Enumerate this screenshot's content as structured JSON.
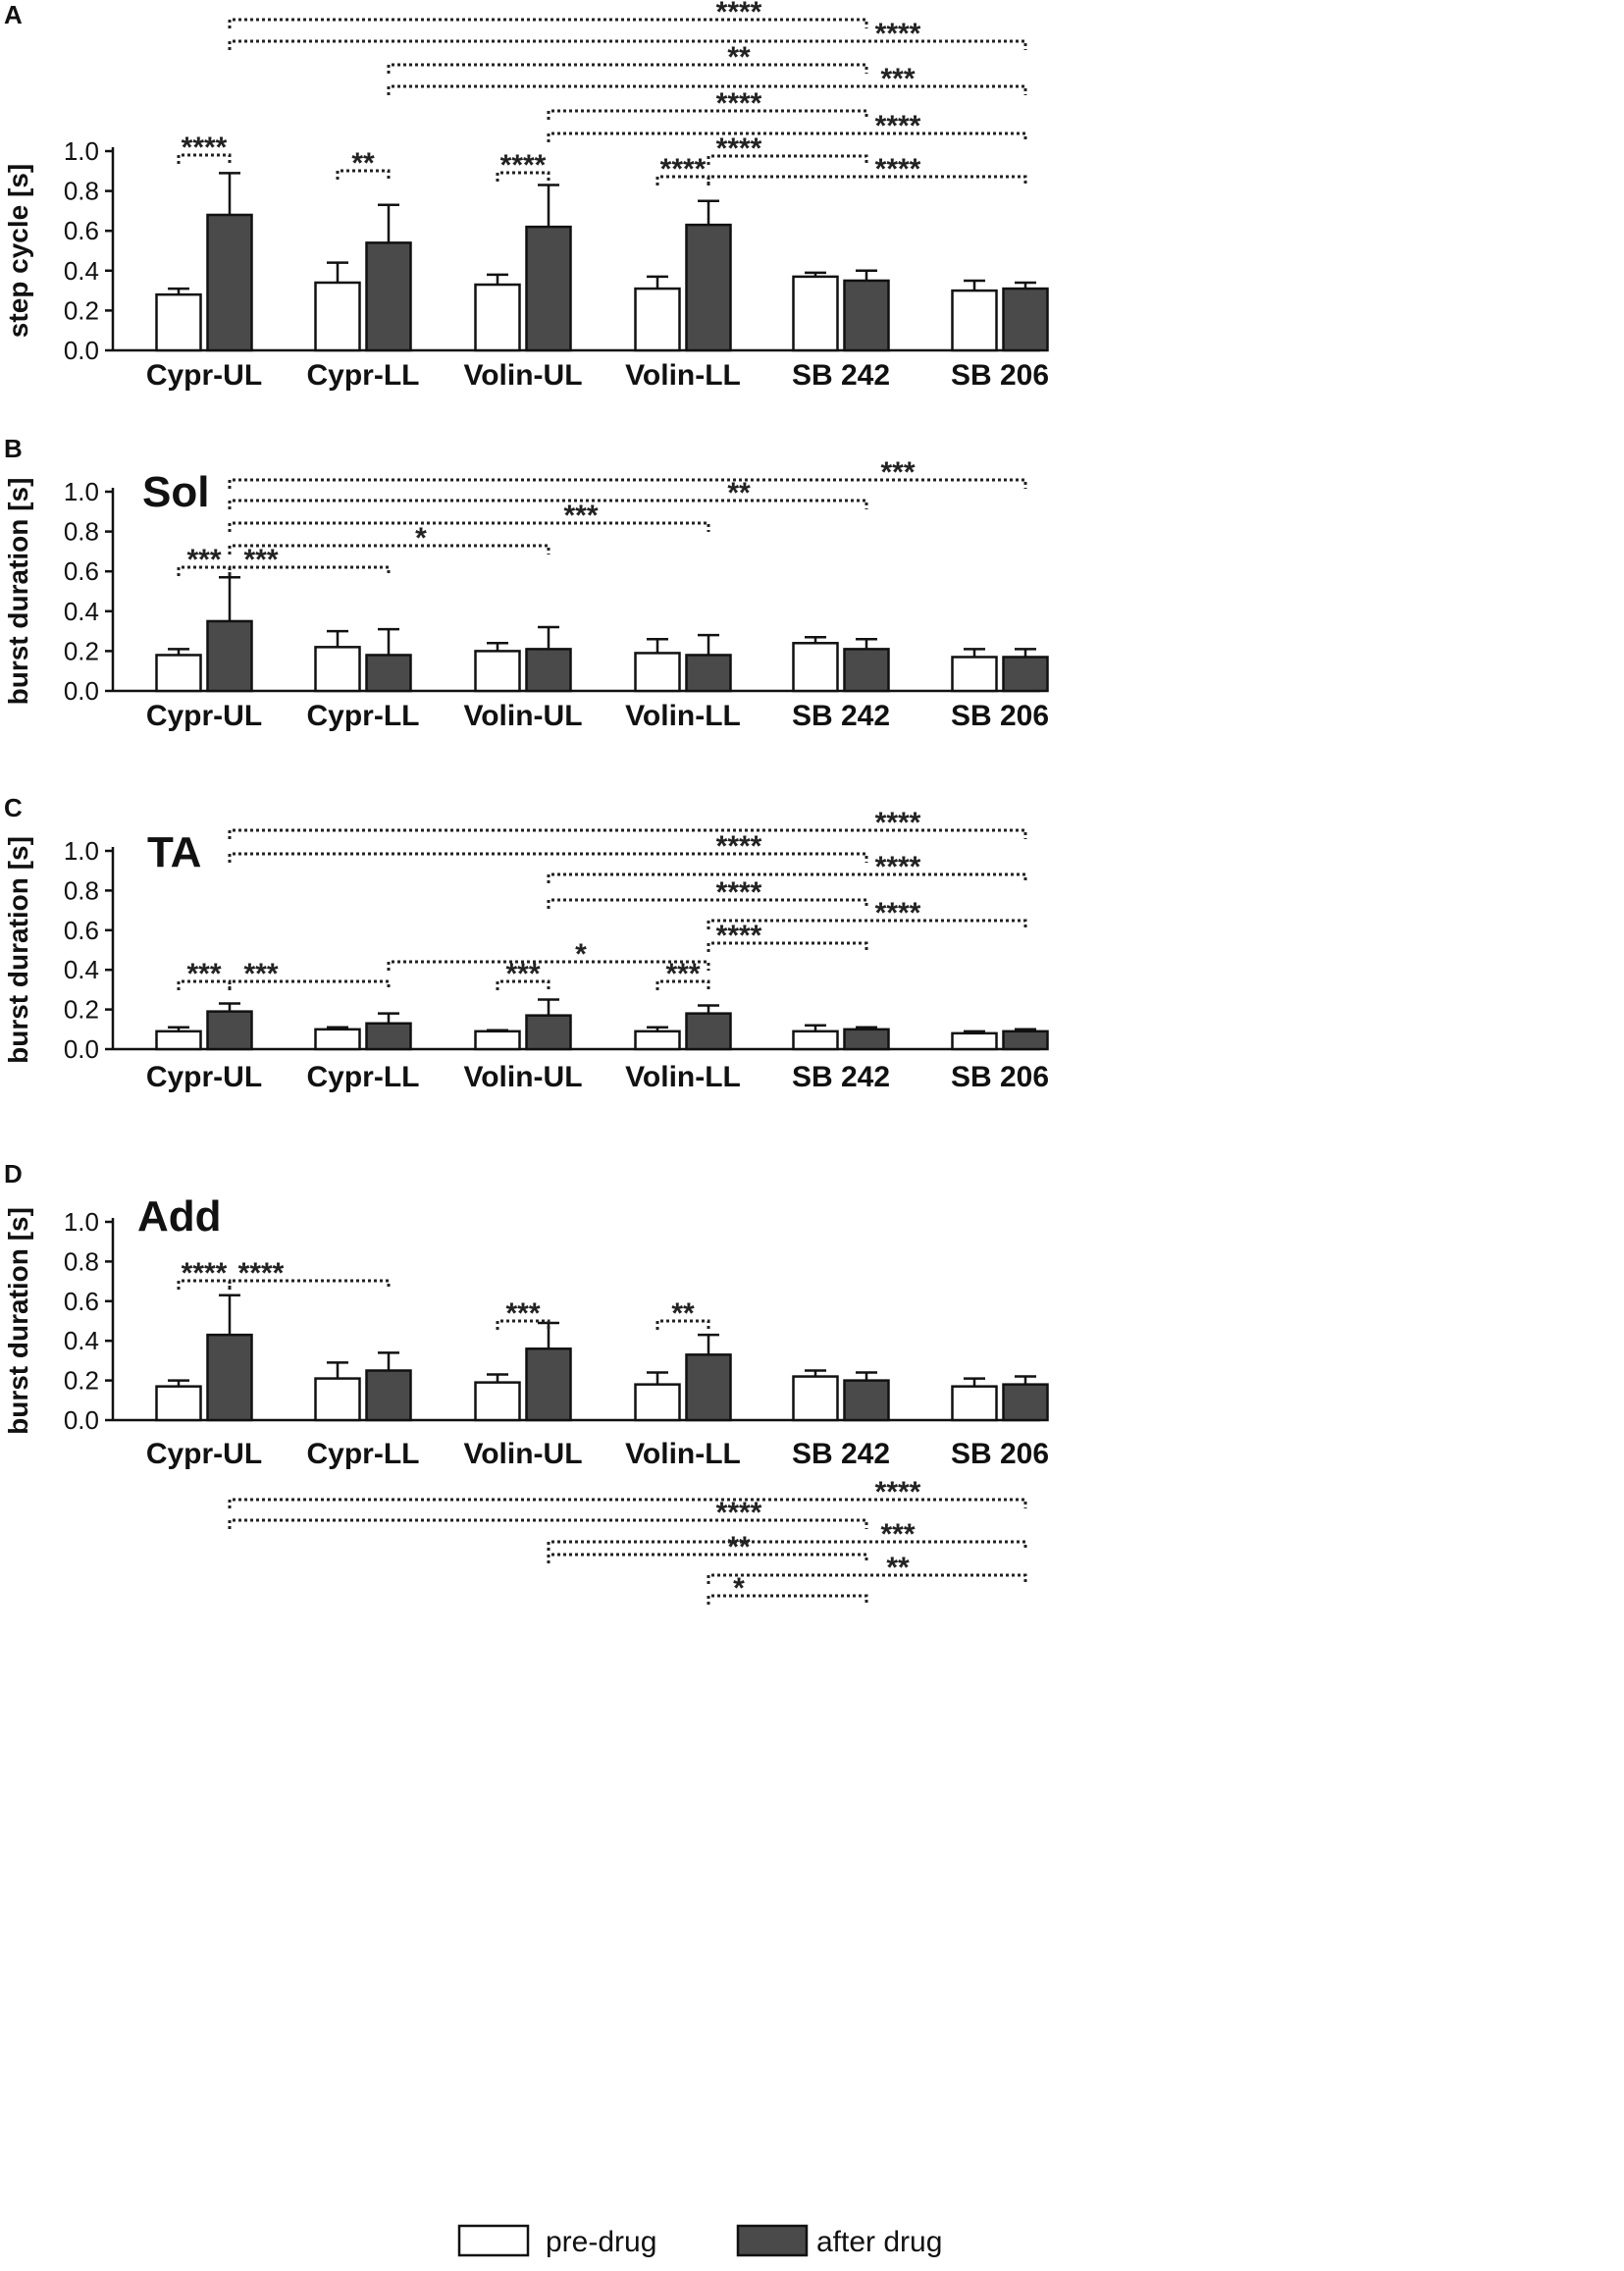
{
  "legend": {
    "pre_label": "pre-drug",
    "post_label": "after drug",
    "pre_color": "#ffffff",
    "post_color": "#4a4a4a"
  },
  "chart_data": [
    {
      "type": "bar",
      "panel": "A",
      "title": "",
      "xlabel": "",
      "ylabel": "step cycle [s]",
      "ylim": [
        0,
        1.0
      ],
      "yticks": [
        "0.0",
        "0.2",
        "0.4",
        "0.6",
        "0.8",
        "1.0"
      ],
      "categories": [
        "Cypr-UL",
        "Cypr-LL",
        "Volin-UL",
        "Volin-LL",
        "SB 242",
        "SB 206"
      ],
      "series": [
        {
          "name": "pre-drug",
          "values": [
            0.28,
            0.34,
            0.33,
            0.31,
            0.37,
            0.3
          ],
          "errors": [
            0.03,
            0.1,
            0.05,
            0.06,
            0.02,
            0.05
          ]
        },
        {
          "name": "after drug",
          "values": [
            0.68,
            0.54,
            0.62,
            0.63,
            0.35,
            0.31
          ],
          "errors": [
            0.21,
            0.19,
            0.21,
            0.12,
            0.05,
            0.03
          ]
        }
      ],
      "significance": [
        {
          "from": "Cypr-UL.pre",
          "to": "Cypr-UL.post",
          "label": "****"
        },
        {
          "from": "Cypr-LL.pre",
          "to": "Cypr-LL.post",
          "label": "**"
        },
        {
          "from": "Volin-UL.pre",
          "to": "Volin-UL.post",
          "label": "****"
        },
        {
          "from": "Volin-LL.pre",
          "to": "Volin-LL.post",
          "label": "****"
        },
        {
          "from": "Volin-LL.post",
          "to": "SB 206.post",
          "label": "****"
        },
        {
          "from": "Volin-LL.post",
          "to": "SB 242.post",
          "label": "****"
        },
        {
          "from": "Volin-UL.post",
          "to": "SB 206.post",
          "label": "****"
        },
        {
          "from": "Volin-UL.post",
          "to": "SB 242.post",
          "label": "****"
        },
        {
          "from": "Cypr-LL.post",
          "to": "SB 206.post",
          "label": "***"
        },
        {
          "from": "Cypr-LL.post",
          "to": "SB 242.post",
          "label": "**"
        },
        {
          "from": "Cypr-UL.post",
          "to": "SB 206.post",
          "label": "****"
        },
        {
          "from": "Cypr-UL.post",
          "to": "SB 242.post",
          "label": "****"
        }
      ]
    },
    {
      "type": "bar",
      "panel": "B",
      "title": "Sol",
      "xlabel": "",
      "ylabel": "burst duration [s]",
      "ylim": [
        0,
        1.0
      ],
      "yticks": [
        "0.0",
        "0.2",
        "0.4",
        "0.6",
        "0.8",
        "1.0"
      ],
      "categories": [
        "Cypr-UL",
        "Cypr-LL",
        "Volin-UL",
        "Volin-LL",
        "SB 242",
        "SB 206"
      ],
      "series": [
        {
          "name": "pre-drug",
          "values": [
            0.18,
            0.22,
            0.2,
            0.19,
            0.24,
            0.17
          ],
          "errors": [
            0.03,
            0.08,
            0.04,
            0.07,
            0.03,
            0.04
          ]
        },
        {
          "name": "after drug",
          "values": [
            0.35,
            0.18,
            0.21,
            0.18,
            0.21,
            0.17
          ],
          "errors": [
            0.22,
            0.13,
            0.11,
            0.1,
            0.05,
            0.04
          ]
        }
      ],
      "significance": [
        {
          "from": "Cypr-UL.pre",
          "to": "Cypr-UL.post",
          "label": "***"
        },
        {
          "from": "Cypr-UL.post",
          "to": "Cypr-LL.post",
          "label": "***"
        },
        {
          "from": "Cypr-UL.post",
          "to": "Volin-UL.post",
          "label": "*"
        },
        {
          "from": "Cypr-UL.post",
          "to": "Volin-LL.post",
          "label": "***"
        },
        {
          "from": "Cypr-UL.post",
          "to": "SB 242.post",
          "label": "**"
        },
        {
          "from": "Cypr-UL.post",
          "to": "SB 206.post",
          "label": "***"
        }
      ]
    },
    {
      "type": "bar",
      "panel": "C",
      "title": "TA",
      "xlabel": "",
      "ylabel": "burst duration [s]",
      "ylim": [
        0,
        1.0
      ],
      "yticks": [
        "0.0",
        "0.2",
        "0.4",
        "0.6",
        "0.8",
        "1.0"
      ],
      "categories": [
        "Cypr-UL",
        "Cypr-LL",
        "Volin-UL",
        "Volin-LL",
        "SB 242",
        "SB 206"
      ],
      "series": [
        {
          "name": "pre-drug",
          "values": [
            0.09,
            0.1,
            0.09,
            0.09,
            0.09,
            0.08
          ],
          "errors": [
            0.02,
            0.01,
            0.005,
            0.02,
            0.03,
            0.01
          ]
        },
        {
          "name": "after drug",
          "values": [
            0.19,
            0.13,
            0.17,
            0.18,
            0.1,
            0.09
          ],
          "errors": [
            0.04,
            0.05,
            0.08,
            0.04,
            0.01,
            0.01
          ]
        }
      ],
      "significance": [
        {
          "from": "Cypr-UL.pre",
          "to": "Cypr-UL.post",
          "label": "***"
        },
        {
          "from": "Cypr-UL.post",
          "to": "Cypr-LL.post",
          "label": "***"
        },
        {
          "from": "Volin-UL.pre",
          "to": "Volin-UL.post",
          "label": "***"
        },
        {
          "from": "Volin-LL.pre",
          "to": "Volin-LL.post",
          "label": "***"
        },
        {
          "from": "Cypr-LL.post",
          "to": "Volin-LL.post",
          "label": "*"
        },
        {
          "from": "Volin-LL.post",
          "to": "SB 242.post",
          "label": "****"
        },
        {
          "from": "Volin-LL.post",
          "to": "SB 206.post",
          "label": "****"
        },
        {
          "from": "Volin-UL.post",
          "to": "SB 242.post",
          "label": "****"
        },
        {
          "from": "Volin-UL.post",
          "to": "SB 206.post",
          "label": "****"
        },
        {
          "from": "Cypr-UL.post",
          "to": "SB 242.post",
          "label": "****"
        },
        {
          "from": "Cypr-UL.post",
          "to": "SB 206.post",
          "label": "****"
        }
      ]
    },
    {
      "type": "bar",
      "panel": "D",
      "title": "Add",
      "xlabel": "",
      "ylabel": "burst duration [s]",
      "ylim": [
        0,
        1.0
      ],
      "yticks": [
        "0.0",
        "0.2",
        "0.4",
        "0.6",
        "0.8",
        "1.0"
      ],
      "categories": [
        "Cypr-UL",
        "Cypr-LL",
        "Volin-UL",
        "Volin-LL",
        "SB 242",
        "SB 206"
      ],
      "series": [
        {
          "name": "pre-drug",
          "values": [
            0.17,
            0.21,
            0.19,
            0.18,
            0.22,
            0.17
          ],
          "errors": [
            0.03,
            0.08,
            0.04,
            0.06,
            0.03,
            0.04
          ]
        },
        {
          "name": "after drug",
          "values": [
            0.43,
            0.25,
            0.36,
            0.33,
            0.2,
            0.18
          ],
          "errors": [
            0.2,
            0.09,
            0.13,
            0.1,
            0.04,
            0.04
          ]
        }
      ],
      "significance": [
        {
          "from": "Cypr-UL.pre",
          "to": "Cypr-UL.post",
          "label": "****"
        },
        {
          "from": "Cypr-UL.post",
          "to": "Cypr-LL.post",
          "label": "****"
        },
        {
          "from": "Volin-UL.pre",
          "to": "Volin-UL.post",
          "label": "***"
        },
        {
          "from": "Volin-LL.pre",
          "to": "Volin-LL.post",
          "label": "**"
        },
        {
          "from": "Volin-LL.post",
          "to": "SB 242.post",
          "label": "*"
        },
        {
          "from": "Volin-LL.post",
          "to": "SB 206.post",
          "label": "**"
        },
        {
          "from": "Volin-UL.post",
          "to": "SB 242.post",
          "label": "**"
        },
        {
          "from": "Volin-UL.post",
          "to": "SB 206.post",
          "label": "***"
        },
        {
          "from": "Cypr-UL.post",
          "to": "SB 242.post",
          "label": "****"
        },
        {
          "from": "Cypr-UL.post",
          "to": "SB 206.post",
          "label": "****"
        }
      ]
    }
  ]
}
